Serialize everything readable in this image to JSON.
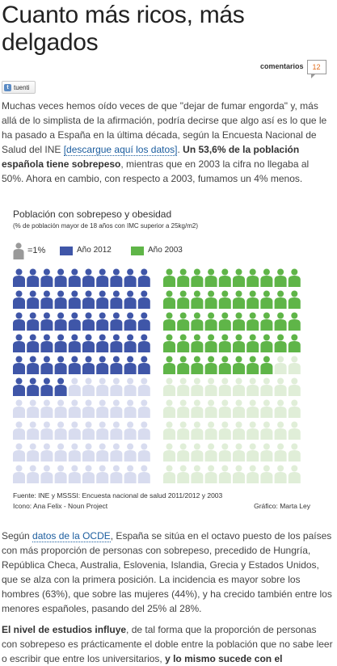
{
  "article": {
    "title": "Cuanto más ricos, más delgados",
    "comments_label": "comentarios",
    "comments_count": "12",
    "share_tuenti": "tuenti",
    "p1_text_a": "Muchas veces hemos oído veces de que \"dejar de fumar engorda\" y, más allá de lo simplista de la afirmación, podría decirse que algo así es lo que le ha pasado a España en la última década, según la Encuesta Nacional de Salud del INE ",
    "p1_link": "[descargue aquí los datos]",
    "p1_text_b": ". ",
    "p1_bold": "Un 53,6% de la población española tiene sobrepeso",
    "p1_text_c": ", mientras que en 2003 la cifra no llegaba al 50%. Ahora en cambio, con respecto a 2003, fumamos un 4% menos.",
    "p2_text_a": "Según ",
    "p2_link": "datos de la OCDE",
    "p2_text_b": ", España se sitúa en el octavo puesto de los países con más proporción de personas con sobrepeso, precedido de Hungría, República Checa, Australia, Eslovenia, Islandia, Grecia y Estados Unidos, que se alza con la primera posición. La incidencia es mayor sobre los hombres (63%), que sobre las mujeres (44%), y ha crecido también entre los menores españoles, pasando del 25% al 28%.",
    "p3_bold": "El nivel de estudios influye",
    "p3_text_a": ", de tal forma que la proporción de personas con sobrepeso es prácticamente el doble entre la población que no sabe leer o escribir que entre los universitarios, ",
    "p3_bold2": "y lo mismo sucede con el"
  },
  "infographic": {
    "title": "Población con sobrepeso y obesidad",
    "subtitle": "(% de población mayor de 18 años con IMC superior a 25kg/m2)",
    "unit_label": "=1%",
    "legend_2012": "Año 2012",
    "legend_2003": "Año 2003",
    "source": "Fuente: INE y MSSSI: Encuesta nacional de salud 2011/2012 y 2003",
    "icon_credit": "Icono: Ana Felix - Noun Project",
    "graphic_credit": "Gráfico: Marta Ley",
    "colors": {
      "c2012": "#3f56a8",
      "c2012_light": "#d8dcef",
      "c2003": "#5fb548",
      "c2003_light": "#e0eed8",
      "unit": "#9a9a9a"
    }
  },
  "chart_data": {
    "type": "pictogram",
    "title": "Población con sobrepeso y obesidad",
    "subtitle": "(% de población mayor de 18 años con IMC superior a 25kg/m2)",
    "unit": "=1%",
    "total_icons": 100,
    "series": [
      {
        "name": "Año 2012",
        "value": 54
      },
      {
        "name": "Año 2003",
        "value": 48
      }
    ]
  }
}
